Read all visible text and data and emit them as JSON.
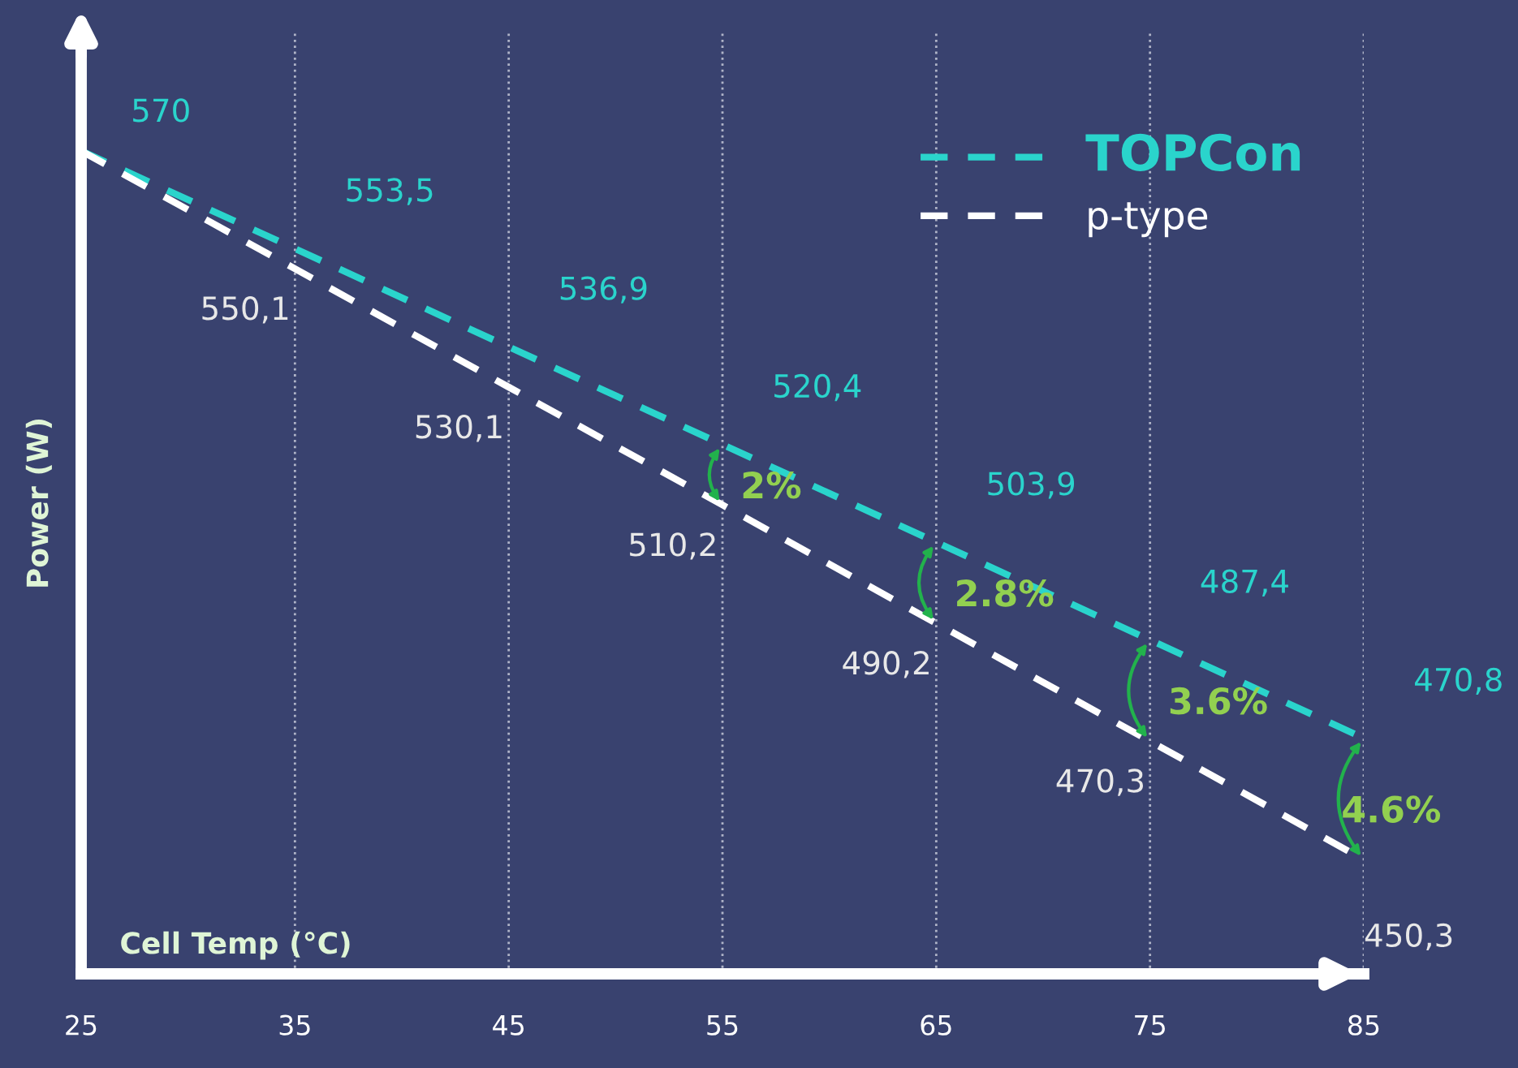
{
  "chart_data": {
    "type": "line",
    "xlabel": "Cell Temp (°C)",
    "ylabel": "Power (W)",
    "x": [
      25,
      35,
      45,
      55,
      65,
      75,
      85
    ],
    "series": [
      {
        "name": "TOPCon",
        "color": "#2ad4cc",
        "values": [
          570,
          553.5,
          536.9,
          520.4,
          503.9,
          487.4,
          470.8
        ],
        "value_labels": [
          "570",
          "553,5",
          "536,9",
          "520,4",
          "503,9",
          "487,4",
          "470,8"
        ]
      },
      {
        "name": "p-type",
        "color": "#ffffff",
        "values": [
          570,
          550.1,
          530.1,
          510.2,
          490.2,
          470.3,
          450.3
        ],
        "value_labels": [
          null,
          "550,1",
          "530,1",
          "510,2",
          "490,2",
          "470,3",
          "450,3"
        ]
      }
    ],
    "xlim": [
      25,
      85
    ],
    "xticks": [
      25,
      35,
      45,
      55,
      65,
      75,
      85
    ],
    "ylim": [
      431,
      590
    ],
    "tick_labels": "x",
    "grid": "x",
    "legend": "top right",
    "line_style": "dashed",
    "marker": "none",
    "annotations": [
      "2%",
      "2.8%",
      "3.6%",
      "4.6%"
    ]
  }
}
